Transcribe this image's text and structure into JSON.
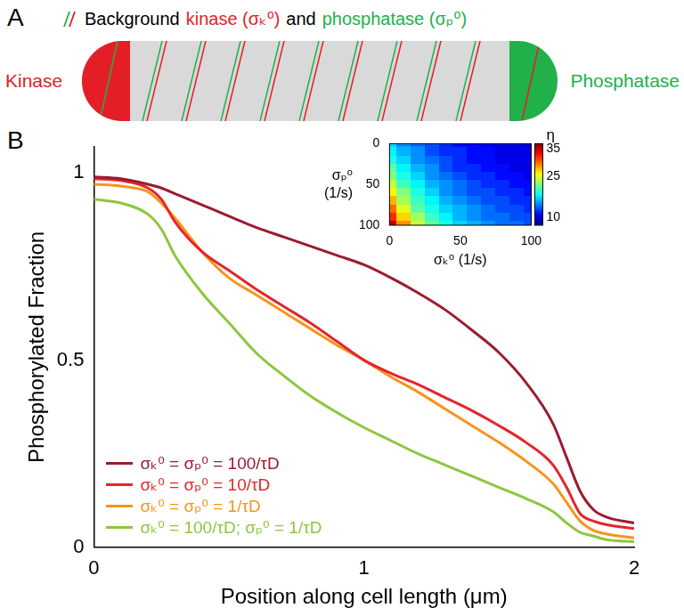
{
  "panel_a": {
    "letter": "A",
    "legend": [
      {
        "text": "Background",
        "color": "#000000"
      },
      {
        "text": "kinase (σₖ⁰)",
        "color": "#e41e26"
      },
      {
        "text": "and",
        "color": "#000000"
      },
      {
        "text": "phosphatase (σₚ⁰)",
        "color": "#22b04b"
      }
    ],
    "left_label": {
      "text": "Kinase",
      "color": "#e41e26"
    },
    "right_label": {
      "text": "Phosphatase",
      "color": "#22b04b"
    }
  },
  "panel_b": {
    "letter": "B"
  },
  "chart_data": [
    {
      "type": "line",
      "xlabel": "Position along cell length (μm)",
      "ylabel": "Phosphorylated Fraction",
      "x": [
        0,
        0.1,
        0.2,
        0.25,
        0.3,
        0.4,
        0.5,
        0.6,
        0.7,
        0.8,
        0.9,
        1.0,
        1.1,
        1.2,
        1.3,
        1.4,
        1.5,
        1.6,
        1.7,
        1.75,
        1.8,
        1.85,
        1.9,
        2.0
      ],
      "series": [
        {
          "name": "σₖ⁰ = σₚ⁰ = 100/τD",
          "color": "#9b1b30",
          "values": [
            0.99,
            0.985,
            0.97,
            0.96,
            0.945,
            0.915,
            0.885,
            0.855,
            0.83,
            0.805,
            0.78,
            0.755,
            0.72,
            0.68,
            0.635,
            0.58,
            0.52,
            0.44,
            0.33,
            0.24,
            0.15,
            0.1,
            0.08,
            0.065
          ]
        },
        {
          "name": "σₖ⁰ = σₚ⁰ = 10/τD",
          "color": "#e3262b",
          "values": [
            0.985,
            0.98,
            0.96,
            0.93,
            0.87,
            0.79,
            0.74,
            0.69,
            0.645,
            0.6,
            0.55,
            0.5,
            0.465,
            0.435,
            0.4,
            0.365,
            0.325,
            0.28,
            0.22,
            0.16,
            0.09,
            0.07,
            0.06,
            0.05
          ]
        },
        {
          "name": "σₖ⁰ = σₚ⁰ = 1/τD",
          "color": "#f7941d",
          "values": [
            0.97,
            0.965,
            0.95,
            0.92,
            0.88,
            0.79,
            0.72,
            0.675,
            0.63,
            0.585,
            0.54,
            0.5,
            0.455,
            0.415,
            0.37,
            0.325,
            0.28,
            0.23,
            0.17,
            0.12,
            0.07,
            0.045,
            0.035,
            0.025
          ]
        },
        {
          "name": "σₖ⁰ = 100/τD; σₚ⁰ = 1/τD",
          "color": "#8dc63f",
          "values": [
            0.93,
            0.92,
            0.89,
            0.85,
            0.78,
            0.68,
            0.6,
            0.52,
            0.46,
            0.405,
            0.36,
            0.32,
            0.285,
            0.25,
            0.22,
            0.19,
            0.16,
            0.13,
            0.095,
            0.065,
            0.04,
            0.03,
            0.02,
            0.015
          ]
        }
      ],
      "xlim": [
        0,
        2
      ],
      "xticks": [
        0,
        1,
        2
      ],
      "ylim": [
        0,
        1.07
      ],
      "yticks": [
        0,
        0.5,
        1
      ],
      "grid": false,
      "legend": "lower left"
    },
    {
      "type": "heatmap",
      "xlabel": "σₖ⁰ (1/s)",
      "ylabel": "σₚ⁰ (1/s)",
      "x": [
        0,
        10,
        20,
        30,
        40,
        50,
        60,
        70,
        80,
        90,
        100
      ],
      "y": [
        0,
        10,
        20,
        30,
        40,
        50,
        60,
        70,
        80,
        90,
        100
      ],
      "values": [
        [
          17,
          15,
          14,
          13,
          12,
          11,
          11,
          10,
          10,
          10,
          9
        ],
        [
          18,
          16,
          15,
          13,
          12,
          12,
          11,
          11,
          10,
          10,
          10
        ],
        [
          19,
          17,
          15,
          14,
          13,
          12,
          11,
          11,
          10,
          10,
          10
        ],
        [
          21,
          18,
          16,
          15,
          13,
          12,
          12,
          11,
          11,
          10,
          10
        ],
        [
          22,
          19,
          17,
          15,
          14,
          13,
          12,
          12,
          11,
          11,
          10
        ],
        [
          24,
          20,
          18,
          16,
          15,
          14,
          13,
          12,
          12,
          11,
          11
        ],
        [
          26,
          22,
          19,
          17,
          15,
          14,
          13,
          13,
          12,
          12,
          11
        ],
        [
          28,
          23,
          20,
          18,
          16,
          15,
          14,
          13,
          13,
          12,
          12
        ],
        [
          30,
          25,
          21,
          19,
          17,
          16,
          15,
          14,
          13,
          13,
          12
        ],
        [
          32,
          27,
          23,
          20,
          18,
          16,
          15,
          14,
          14,
          13,
          13
        ],
        [
          35,
          29,
          24,
          21,
          19,
          17,
          16,
          15,
          14,
          14,
          13
        ]
      ],
      "xlim": [
        0,
        100
      ],
      "xticks": [
        0,
        50,
        100
      ],
      "ylim": [
        100,
        0
      ],
      "yticks": [
        0,
        50,
        100
      ],
      "colorbar": {
        "label": "η",
        "lim": [
          7,
          37
        ],
        "ticks": [
          10,
          25,
          35
        ]
      },
      "grid": false
    }
  ]
}
